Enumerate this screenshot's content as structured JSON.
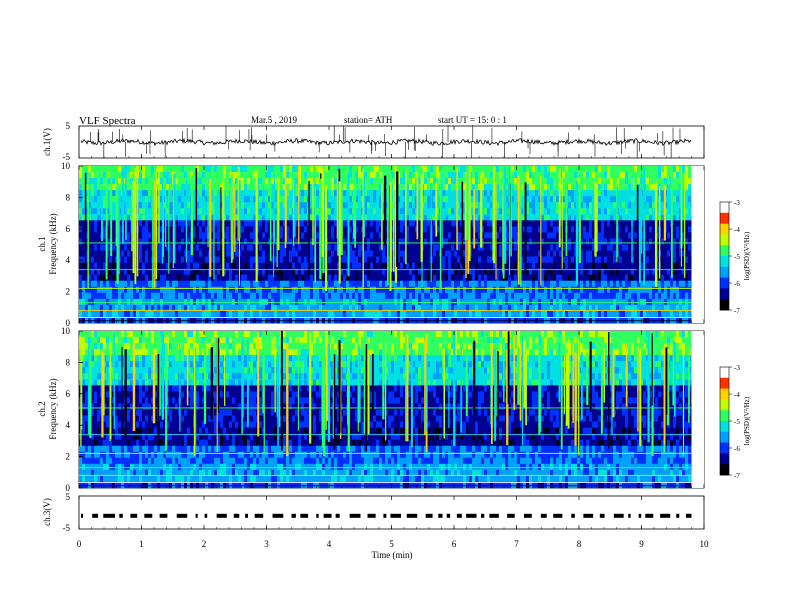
{
  "header": {
    "title": "VLF  Spectra",
    "date": "Mar.5  , 2019",
    "station": "station= ATH",
    "start": "start  UT  =    15: 0   : 1"
  },
  "chart_data": [
    {
      "type": "line",
      "panel": "ch1-waveform",
      "ylabel": "ch.1(V)",
      "ylim": [
        -5,
        5
      ],
      "yticks": [
        "5",
        "-5"
      ],
      "baseline": 0,
      "note_values": "trace fluctuates near 0 V with sparse impulsive spikes"
    },
    {
      "type": "heatmap",
      "panel": "ch1-spectrogram",
      "ylabel": "ch.1\nFrequency  (kHz)",
      "ylim": [
        0,
        10
      ],
      "yticks": [
        "0",
        "2",
        "4",
        "6",
        "8",
        "10"
      ],
      "colorbar": {
        "label": "log(PSD)(V²/Hz)",
        "range": [
          -7,
          -3
        ],
        "ticks": [
          "-3",
          "-4",
          "-5",
          "-6",
          "-7"
        ]
      }
    },
    {
      "type": "heatmap",
      "panel": "ch2-spectrogram",
      "ylabel": "ch.2\nFrequency  (kHz)",
      "ylim": [
        0,
        10
      ],
      "yticks": [
        "0",
        "2",
        "4",
        "6",
        "8",
        "10"
      ],
      "colorbar": {
        "label": "log(PSD)(V²/Hz)",
        "range": [
          -7,
          -3
        ],
        "ticks": [
          "-3",
          "-4",
          "-5",
          "-6",
          "-7"
        ]
      }
    },
    {
      "type": "line",
      "panel": "ch3-waveform",
      "ylabel": "ch.3(V)",
      "ylim": [
        -5,
        5
      ],
      "yticks": [
        "5",
        "-5"
      ],
      "baseline": -1
    }
  ],
  "xaxis": {
    "label": "Time  (min)",
    "range": [
      0,
      10
    ],
    "ticks": [
      "0",
      "1",
      "2",
      "3",
      "4",
      "5",
      "6",
      "7",
      "8",
      "9",
      "10"
    ],
    "data_end": 9.8
  },
  "colormap": [
    "#000020",
    "#000090",
    "#0030ff",
    "#00a0ff",
    "#00e0e0",
    "#30ff60",
    "#c0ff00",
    "#ffd000",
    "#ff3000",
    "#ffffff"
  ]
}
